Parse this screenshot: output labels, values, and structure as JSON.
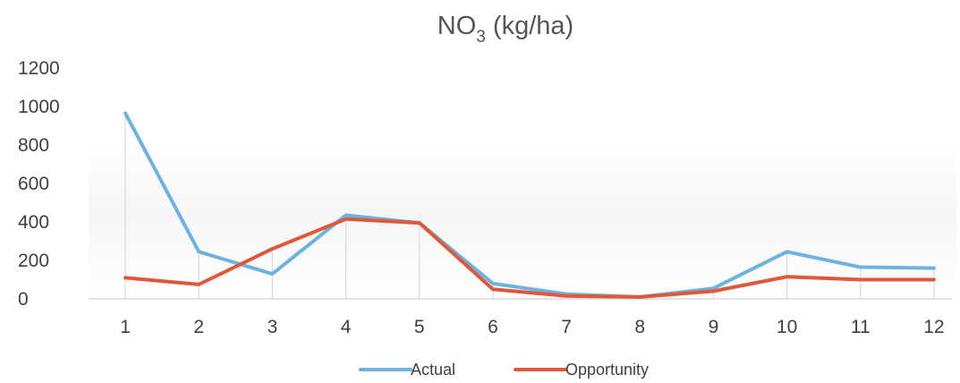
{
  "chart_data": {
    "type": "line",
    "title_main": "NO",
    "title_sub": "3",
    "title_rest": " (kg/ha)",
    "categories": [
      "1",
      "2",
      "3",
      "4",
      "5",
      "6",
      "7",
      "8",
      "9",
      "10",
      "11",
      "12"
    ],
    "series": [
      {
        "name": "Actual",
        "color": "#6db3e0",
        "values": [
          965,
          245,
          130,
          435,
          395,
          80,
          25,
          10,
          55,
          245,
          165,
          160
        ]
      },
      {
        "name": "Opportunity",
        "color": "#e0583a",
        "values": [
          110,
          75,
          260,
          415,
          395,
          50,
          15,
          10,
          40,
          115,
          100,
          100
        ]
      }
    ],
    "y_ticks": [
      "0",
      "200",
      "400",
      "600",
      "800",
      "1000",
      "1200"
    ],
    "ylim": [
      0,
      1200
    ],
    "drop_lines": true,
    "legend_position": "bottom"
  }
}
